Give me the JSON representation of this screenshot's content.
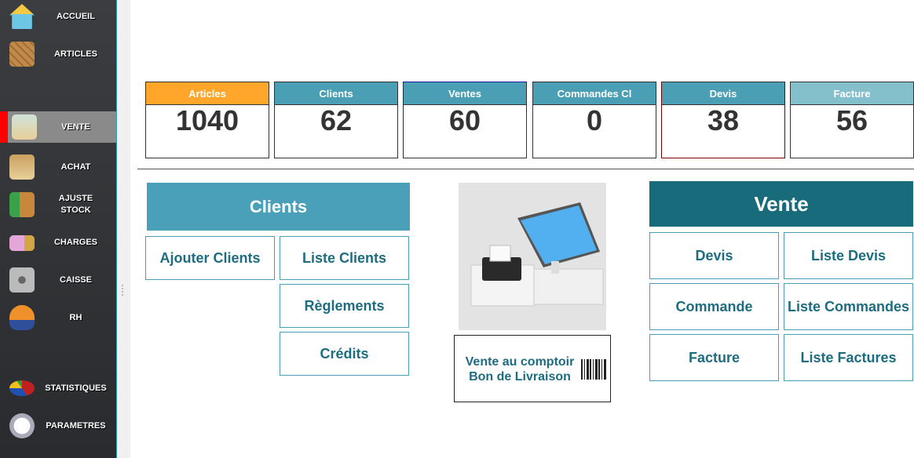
{
  "sidebar": {
    "items": [
      {
        "label": "ACCUEIL",
        "icon": "house-icon"
      },
      {
        "label": "ARTICLES",
        "icon": "crate-icon"
      },
      {
        "label": "VENTE",
        "icon": "sale-bag-icon",
        "active": true
      },
      {
        "label": "ACHAT",
        "icon": "shopping-bag-icon"
      },
      {
        "label": "AJUSTE STOCK",
        "icon": "stock-boxes-icon"
      },
      {
        "label": "CHARGES",
        "icon": "money-icon"
      },
      {
        "label": "CAISSE",
        "icon": "safe-icon"
      },
      {
        "label": "RH",
        "icon": "person-icon"
      },
      {
        "label": "STATISTIQUES",
        "icon": "pie-chart-icon"
      },
      {
        "label": "PARAMETRES",
        "icon": "gear-icon"
      }
    ]
  },
  "stats": [
    {
      "label": "Articles",
      "value": "1040",
      "color": "#ffa62b"
    },
    {
      "label": "Clients",
      "value": "62",
      "color": "#4a9fb5"
    },
    {
      "label": "Ventes",
      "value": "60",
      "color": "#4a9fb5"
    },
    {
      "label": "Commandes Cl",
      "value": "0",
      "color": "#4a9fb5"
    },
    {
      "label": "Devis",
      "value": "38",
      "color": "#4a9fb5"
    },
    {
      "label": "Facture",
      "value": "56",
      "color": "#84c0cb"
    }
  ],
  "clients": {
    "title": "Clients",
    "add": "Ajouter Clients",
    "list": "Liste Clients",
    "payments": "Règlements",
    "credits": "Crédits"
  },
  "counter": {
    "line1": "Vente au comptoir",
    "line2": "Bon de Livraison"
  },
  "vente": {
    "title": "Vente",
    "devis": "Devis",
    "list_devis": "Liste Devis",
    "commande": "Commande",
    "list_commandes": "Liste Commandes",
    "facture": "Facture",
    "list_factures": "Liste Factures"
  },
  "colors": {
    "clients_header": "#4aa0b8",
    "vente_header": "#176b7b",
    "button_text": "#1d6c80",
    "active_marker": "#ff0000"
  }
}
